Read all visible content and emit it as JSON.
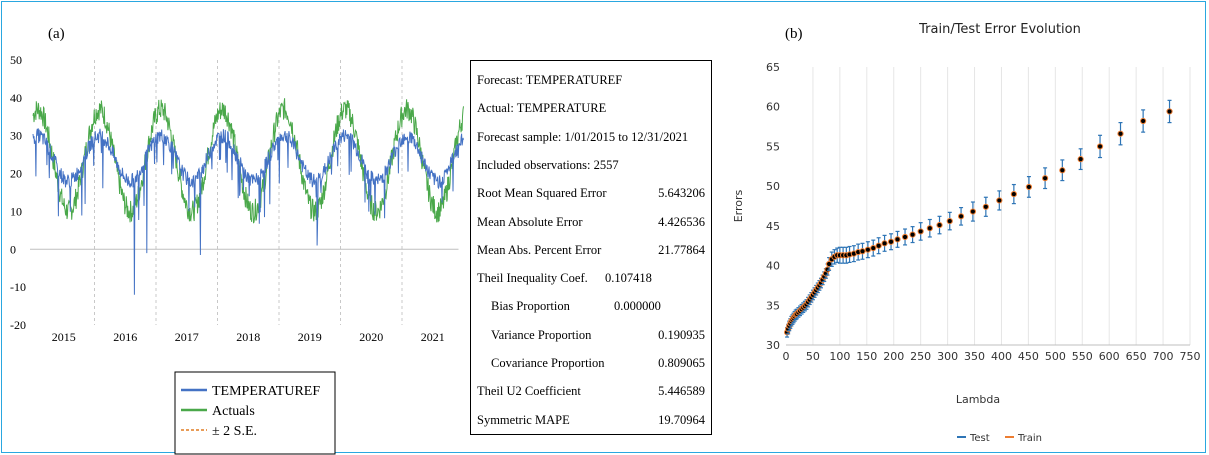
{
  "panel_a": {
    "label": "(a)",
    "chart_data": {
      "type": "line",
      "xlabel": "",
      "ylabel": "",
      "ylim": [
        -20,
        50
      ],
      "yticks": [
        "50",
        "40",
        "30",
        "20",
        "10",
        "0",
        "-10",
        "-20"
      ],
      "xticks": [
        "2015",
        "2016",
        "2017",
        "2018",
        "2019",
        "2020",
        "2021"
      ],
      "grid": "vertical dashed gridlines at year boundaries",
      "legend_position": "bottom",
      "series": [
        {
          "name": "TEMPERATUREF",
          "color": "#4472c4",
          "summer_peak": 30,
          "winter_trough": 18,
          "notable_dips": [
            {
              "year": 2016.65,
              "value": -12
            },
            {
              "year": 2016.85,
              "value": -1
            },
            {
              "year": 2017.72,
              "value": -1.5
            },
            {
              "year": 2019.62,
              "value": 1
            }
          ]
        },
        {
          "name": "Actuals",
          "color": "#4aa84a",
          "summer_peak": 37,
          "winter_trough": 10
        },
        {
          "name": "± 2 S.E.",
          "color": "#e07b20",
          "style": "dashed"
        }
      ]
    }
  },
  "stats": {
    "rows": [
      {
        "label": "Forecast: TEMPERATUREF",
        "value": ""
      },
      {
        "label": "Actual: TEMPERATURE",
        "value": ""
      },
      {
        "label": "Forecast sample: 1/01/2015 to 12/31/2021",
        "value": ""
      },
      {
        "label": "Included observations: 2557",
        "value": ""
      },
      {
        "label": "Root Mean Squared Error",
        "value": "5.643206"
      },
      {
        "label": "Mean Absolute Error",
        "value": "4.426536"
      },
      {
        "label": "Mean Abs. Percent Error",
        "value": "21.77864"
      },
      {
        "label": "Theil Inequality Coef.",
        "value": "0.107418"
      },
      {
        "label": "Bias Proportion",
        "value": "0.000000"
      },
      {
        "label": "Variance Proportion",
        "value": "0.190935"
      },
      {
        "label": "Covariance Proportion",
        "value": "0.809065"
      },
      {
        "label": "Theil U2 Coefficient",
        "value": "5.446589"
      },
      {
        "label": "Symmetric MAPE",
        "value": "19.70964"
      }
    ]
  },
  "panel_b": {
    "label": "(b)",
    "chart_data": {
      "type": "scatter",
      "title": "Train/Test Error Evolution",
      "xlabel": "Lambda",
      "ylabel": "Errors",
      "xlim": [
        0,
        750
      ],
      "ylim": [
        30,
        65
      ],
      "xticks": [
        "0",
        "50",
        "100",
        "150",
        "200",
        "250",
        "300",
        "350",
        "400",
        "450",
        "500",
        "550",
        "600",
        "650",
        "700",
        "750"
      ],
      "yticks": [
        "65",
        "60",
        "55",
        "50",
        "45",
        "40",
        "35",
        "30"
      ],
      "grid": "vertical light gridlines",
      "legend_position": "bottom",
      "series": [
        {
          "name": "Test",
          "color": "#2e75b6",
          "role": "error bars"
        },
        {
          "name": "Train",
          "color": "#ed7d31",
          "role": "points"
        }
      ],
      "x": [
        2,
        4,
        6,
        8,
        10,
        12,
        14,
        16,
        18,
        20,
        23,
        26,
        29,
        32,
        35,
        38,
        41,
        44,
        47,
        50,
        53,
        56,
        59,
        62,
        65,
        68,
        71,
        74,
        77,
        80,
        85,
        90,
        95,
        100,
        106,
        112,
        118,
        126,
        134,
        142,
        152,
        162,
        172,
        183,
        195,
        207,
        221,
        235,
        250,
        267,
        285,
        304,
        325,
        347,
        371,
        396,
        423,
        451,
        481,
        513,
        547,
        583,
        621,
        663,
        712
      ],
      "y": [
        31.6,
        32.0,
        32.4,
        32.7,
        33.0,
        33.2,
        33.4,
        33.6,
        33.8,
        33.9,
        34.1,
        34.3,
        34.5,
        34.7,
        34.9,
        35.1,
        35.4,
        35.7,
        36.0,
        36.3,
        36.6,
        36.9,
        37.2,
        37.5,
        37.8,
        38.2,
        38.6,
        39.0,
        39.5,
        40.2,
        40.8,
        41.1,
        41.3,
        41.3,
        41.3,
        41.3,
        41.4,
        41.5,
        41.7,
        41.8,
        42.0,
        42.2,
        42.5,
        42.8,
        43.0,
        43.3,
        43.6,
        43.9,
        44.3,
        44.7,
        45.1,
        45.6,
        46.2,
        46.8,
        47.4,
        48.2,
        49.0,
        49.9,
        51.0,
        52.0,
        53.4,
        55.0,
        56.6,
        58.2,
        59.4
      ],
      "error_halfwidth": [
        0.6,
        0.6,
        0.6,
        0.6,
        0.6,
        0.6,
        0.6,
        0.6,
        0.6,
        0.6,
        0.6,
        0.6,
        0.6,
        0.6,
        0.6,
        0.6,
        0.6,
        0.6,
        0.6,
        0.6,
        0.6,
        0.6,
        0.6,
        0.6,
        0.6,
        0.6,
        0.6,
        0.6,
        0.7,
        0.8,
        0.9,
        0.9,
        0.9,
        1.0,
        1.0,
        1.0,
        1.0,
        1.0,
        1.0,
        1.0,
        1.0,
        1.0,
        1.0,
        1.0,
        1.0,
        1.0,
        1.0,
        1.0,
        1.1,
        1.1,
        1.1,
        1.1,
        1.1,
        1.2,
        1.2,
        1.2,
        1.2,
        1.3,
        1.3,
        1.3,
        1.3,
        1.4,
        1.4,
        1.4,
        1.4
      ]
    }
  }
}
